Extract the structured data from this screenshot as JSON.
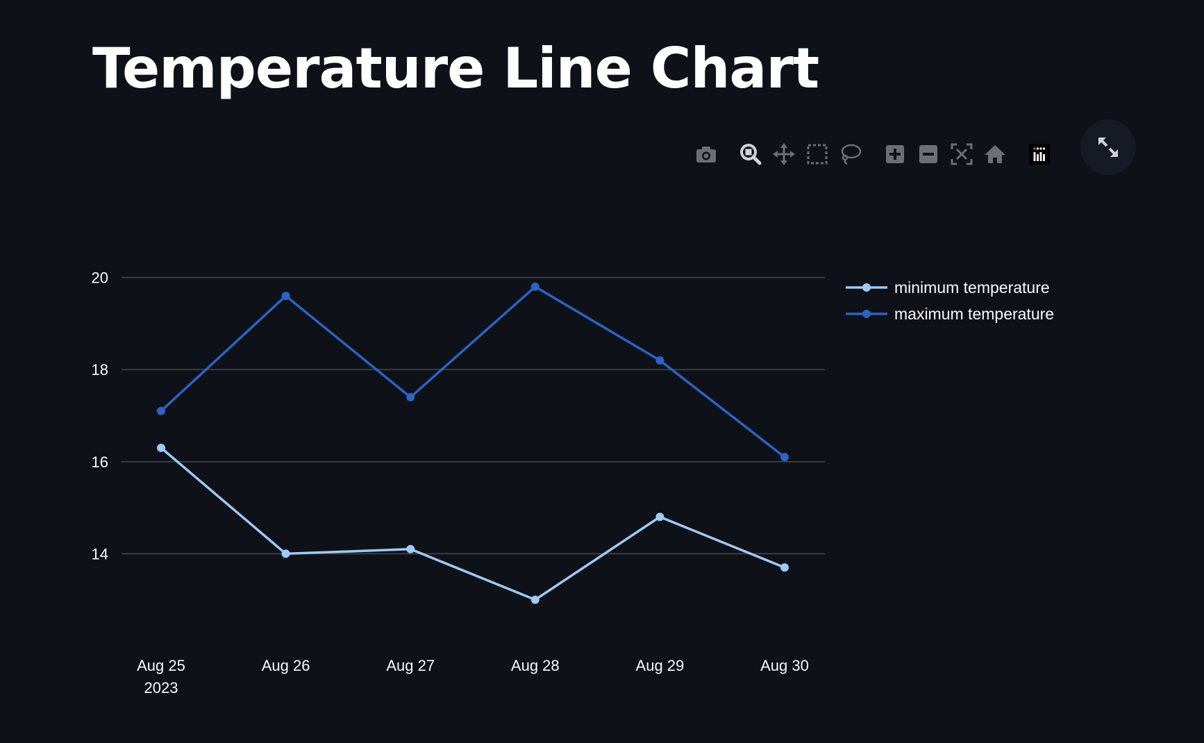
{
  "page": {
    "title": "Temperature Line Chart"
  },
  "modebar": {
    "icons": [
      "camera-icon",
      "zoom-icon",
      "pan-icon",
      "box-select-icon",
      "lasso-icon",
      "zoom-in-icon",
      "zoom-out-icon",
      "autoscale-icon",
      "home-icon",
      "plotly-logo-icon"
    ]
  },
  "colors": {
    "background": "#0e1117",
    "grid": "#3a3d46",
    "min_series": "#9ecaf9",
    "max_series": "#2b63c7",
    "icon": "#6b6f78"
  },
  "chart_data": {
    "type": "line",
    "x": [
      "2023-08-25",
      "2023-08-26",
      "2023-08-27",
      "2023-08-28",
      "2023-08-29",
      "2023-08-30"
    ],
    "x_tick_labels": [
      {
        "main": "Aug 25",
        "sub": "2023"
      },
      {
        "main": "Aug 26",
        "sub": ""
      },
      {
        "main": "Aug 27",
        "sub": ""
      },
      {
        "main": "Aug 28",
        "sub": ""
      },
      {
        "main": "Aug 29",
        "sub": ""
      },
      {
        "main": "Aug 30",
        "sub": ""
      }
    ],
    "y_ticks": [
      14,
      16,
      18,
      20
    ],
    "y_tick_labels": [
      "14",
      "16",
      "18",
      "20"
    ],
    "ylim": [
      12.0,
      20.9
    ],
    "grid": true,
    "legend_position": "top-right",
    "series": [
      {
        "name": "minimum temperature",
        "values": [
          16.3,
          14.0,
          14.1,
          13.0,
          14.8,
          13.7
        ]
      },
      {
        "name": "maximum temperature",
        "values": [
          17.1,
          19.6,
          17.4,
          19.8,
          18.2,
          16.1
        ]
      }
    ],
    "title": "",
    "xlabel": "",
    "ylabel": ""
  }
}
